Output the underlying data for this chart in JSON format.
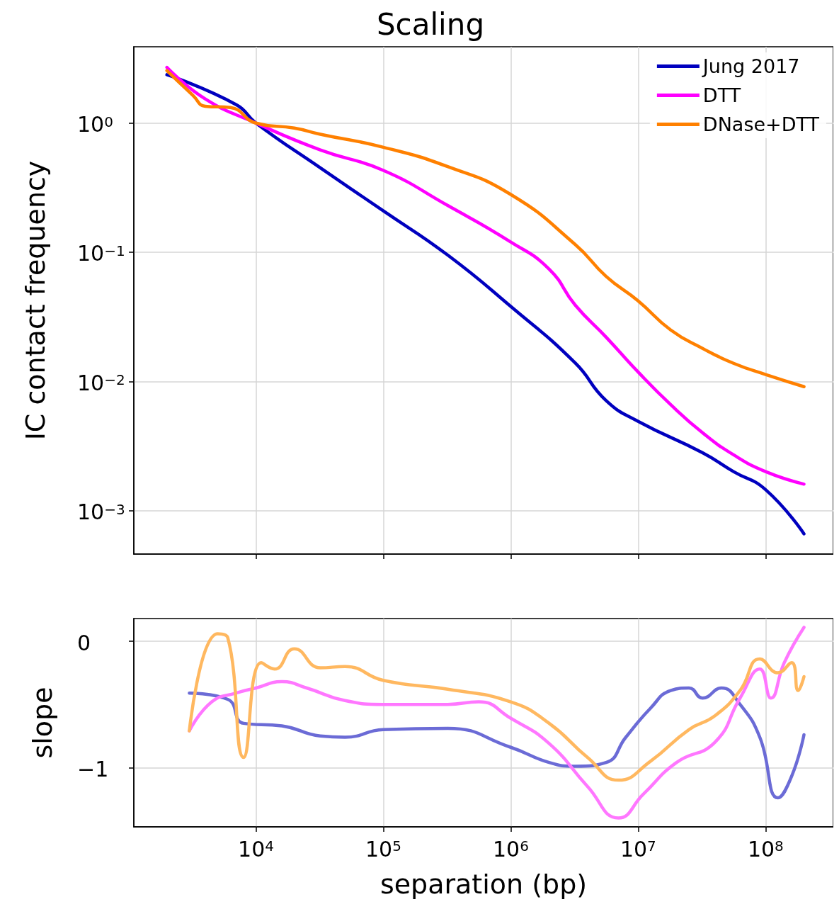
{
  "chart_data": [
    {
      "type": "line",
      "title": "Scaling",
      "ylabel": "IC contact frequency",
      "log": "xy",
      "grid": true,
      "legend": "top right",
      "tick_labels": "y",
      "xlim": [
        1100,
        340000000
      ],
      "ylim": [
        0.00046,
        3.9
      ],
      "xticks": [
        {
          "value": 10000,
          "label": null
        },
        {
          "value": 100000,
          "label": null
        },
        {
          "value": 1000000,
          "label": null
        },
        {
          "value": 10000000,
          "label": null
        },
        {
          "value": 100000000,
          "label": null
        }
      ],
      "yticks": [
        {
          "value": 0.001,
          "label": "10$^{−3}$"
        },
        {
          "value": 0.01,
          "label": "10$^{−2}$"
        },
        {
          "value": 0.1,
          "label": "10$^{−1}$"
        },
        {
          "value": 1,
          "label": "10$^{0}$"
        }
      ],
      "series": [
        {
          "name": "Jung 2017",
          "color": "#0000bf",
          "x": [
            2000,
            7000,
            10000,
            32000,
            100000,
            320000,
            1000000,
            3200000,
            5600000,
            10000000,
            32000000,
            56000000,
            100000000,
            200000000
          ],
          "values": [
            2.37,
            1.39,
            1.0,
            0.45,
            0.209,
            0.095,
            0.038,
            0.0139,
            0.0071,
            0.0049,
            0.0028,
            0.002,
            0.00145,
            0.00066
          ]
        },
        {
          "name": "DTT",
          "color": "#ff00ff",
          "x": [
            2000,
            4000,
            10000,
            32000,
            100000,
            320000,
            1000000,
            2000000,
            3200000,
            5600000,
            10000000,
            18000000,
            32000000,
            56000000,
            100000000,
            200000000
          ],
          "values": [
            2.7,
            1.54,
            1.0,
            0.62,
            0.43,
            0.23,
            0.12,
            0.074,
            0.039,
            0.022,
            0.0118,
            0.0066,
            0.004,
            0.0027,
            0.002,
            0.0016
          ]
        },
        {
          "name": "DNase+DTT",
          "color": "#ff8000",
          "x": [
            2000,
            3200,
            4000,
            6300,
            10000,
            20000,
            32000,
            100000,
            320000,
            1000000,
            3200000,
            5600000,
            10000000,
            18000000,
            32000000,
            56000000,
            100000000,
            200000000
          ],
          "values": [
            2.55,
            1.64,
            1.35,
            1.32,
            1.0,
            0.915,
            0.82,
            0.65,
            0.46,
            0.28,
            0.115,
            0.065,
            0.042,
            0.025,
            0.018,
            0.0138,
            0.0113,
            0.0091
          ]
        }
      ]
    },
    {
      "type": "line",
      "xlabel": "separation (bp)",
      "ylabel": "slope",
      "log": "x",
      "grid": true,
      "xlim": [
        1100,
        340000000
      ],
      "ylim": [
        -1.47,
        0.18
      ],
      "xticks": [
        {
          "value": 10000,
          "label": "10$^{4}$"
        },
        {
          "value": 100000,
          "label": "10$^{5}$"
        },
        {
          "value": 1000000,
          "label": "10$^{6}$"
        },
        {
          "value": 10000000,
          "label": "10$^{7}$"
        },
        {
          "value": 100000000,
          "label": "10$^{8}$"
        }
      ],
      "yticks": [
        {
          "value": -1,
          "label": "−1"
        },
        0
      ],
      "series": [
        {
          "color": "#6b6bd6",
          "x": [
            3000,
            6000,
            8000,
            16000,
            32000,
            50000,
            100000,
            320000,
            1000000,
            2000000,
            3200000,
            5600000,
            8000000,
            12500000,
            18000000,
            25000000,
            32000000,
            45000000,
            63000000,
            90000000,
            125000000,
            160000000,
            200000000
          ],
          "values": [
            -0.41,
            -0.46,
            -0.65,
            -0.67,
            -0.75,
            -0.76,
            -0.7,
            -0.69,
            -0.84,
            -0.96,
            -0.99,
            -0.96,
            -0.76,
            -0.53,
            -0.39,
            -0.37,
            -0.45,
            -0.37,
            -0.5,
            -0.76,
            -1.24,
            -1.07,
            -0.74
          ]
        },
        {
          "color": "#ff77ff",
          "x": [
            3000,
            4500,
            7000,
            10000,
            16000,
            25000,
            50000,
            100000,
            320000,
            560000,
            1000000,
            2000000,
            4000000,
            7000000,
            11000000,
            20000000,
            40000000,
            63000000,
            90000000,
            110000000,
            140000000,
            200000000
          ],
          "values": [
            -0.71,
            -0.48,
            -0.41,
            -0.37,
            -0.32,
            -0.37,
            -0.47,
            -0.5,
            -0.5,
            -0.48,
            -0.61,
            -0.81,
            -1.15,
            -1.4,
            -1.21,
            -0.96,
            -0.8,
            -0.45,
            -0.22,
            -0.45,
            -0.17,
            0.11
          ]
        },
        {
          "color": "#ffb860",
          "x": [
            3000,
            5000,
            6000,
            8000,
            11000,
            14000,
            20000,
            32000,
            50000,
            100000,
            320000,
            1000000,
            2000000,
            4000000,
            7000000,
            12500000,
            25000000,
            40000000,
            63000000,
            90000000,
            125000000,
            160000000,
            180000000,
            200000000
          ],
          "values": [
            -0.71,
            0.06,
            0.03,
            -0.92,
            -0.17,
            -0.22,
            -0.06,
            -0.21,
            -0.2,
            -0.31,
            -0.38,
            -0.48,
            -0.65,
            -0.92,
            -1.1,
            -0.95,
            -0.7,
            -0.59,
            -0.39,
            -0.14,
            -0.25,
            -0.17,
            -0.39,
            -0.28
          ]
        }
      ]
    }
  ]
}
